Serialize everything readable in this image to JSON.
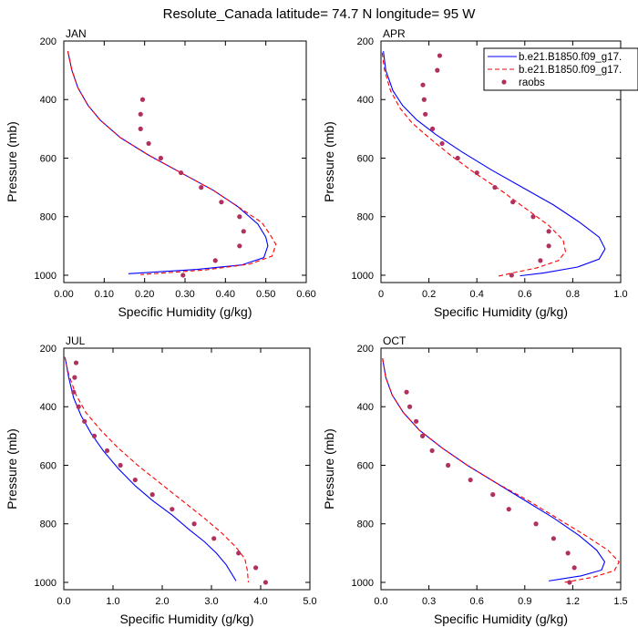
{
  "title": "Resolute_Canada  latitude= 74.7 N longitude= 95 W",
  "legend": {
    "entries": [
      {
        "label": "b.e21.B1850.f09_g17.",
        "style": "solid",
        "color": "#0000ff"
      },
      {
        "label": "b.e21.B1850.f09_g17.",
        "style": "dashed",
        "color": "#ff0000"
      },
      {
        "label": "raobs",
        "style": "dots",
        "color": "#b03060"
      }
    ]
  },
  "chart_data": [
    {
      "type": "line",
      "panel": "JAN",
      "xlabel": "Specific Humidity (g/kg)",
      "ylabel": "Pressure (mb)",
      "xlim": [
        0,
        0.6
      ],
      "ylim": [
        200,
        1025
      ],
      "y_reversed": true,
      "xticks": [
        "0.00",
        "0.10",
        "0.20",
        "0.30",
        "0.40",
        "0.50",
        "0.60"
      ],
      "xtick_values": [
        0,
        0.1,
        0.2,
        0.3,
        0.4,
        0.5,
        0.6
      ],
      "yticks": [
        200,
        400,
        600,
        800,
        1000
      ],
      "series": [
        {
          "style": "solid",
          "color": "#0000ff",
          "points": [
            [
              0.01,
              235
            ],
            [
              0.02,
              300
            ],
            [
              0.035,
              360
            ],
            [
              0.06,
              420
            ],
            [
              0.09,
              470
            ],
            [
              0.14,
              530
            ],
            [
              0.21,
              590
            ],
            [
              0.29,
              650
            ],
            [
              0.37,
              710
            ],
            [
              0.43,
              765
            ],
            [
              0.48,
              825
            ],
            [
              0.5,
              870
            ],
            [
              0.505,
              900
            ],
            [
              0.495,
              940
            ],
            [
              0.44,
              965
            ],
            [
              0.33,
              980
            ],
            [
              0.16,
              995
            ]
          ]
        },
        {
          "style": "dashed",
          "color": "#ff0000",
          "points": [
            [
              0.01,
              235
            ],
            [
              0.02,
              300
            ],
            [
              0.035,
              360
            ],
            [
              0.06,
              420
            ],
            [
              0.09,
              470
            ],
            [
              0.14,
              530
            ],
            [
              0.21,
              590
            ],
            [
              0.29,
              650
            ],
            [
              0.37,
              710
            ],
            [
              0.43,
              765
            ],
            [
              0.49,
              820
            ],
            [
              0.51,
              860
            ],
            [
              0.525,
              895
            ],
            [
              0.515,
              935
            ],
            [
              0.46,
              962
            ],
            [
              0.35,
              982
            ],
            [
              0.19,
              998
            ]
          ]
        },
        {
          "style": "dots",
          "color": "#b03060",
          "points": [
            [
              0.195,
              400
            ],
            [
              0.19,
              450
            ],
            [
              0.19,
              500
            ],
            [
              0.21,
              550
            ],
            [
              0.24,
              600
            ],
            [
              0.29,
              650
            ],
            [
              0.34,
              700
            ],
            [
              0.39,
              750
            ],
            [
              0.435,
              800
            ],
            [
              0.445,
              850
            ],
            [
              0.435,
              900
            ],
            [
              0.375,
              950
            ],
            [
              0.295,
              1000
            ]
          ]
        }
      ]
    },
    {
      "type": "line",
      "panel": "APR",
      "xlabel": "Specific Humidity (g/kg)",
      "ylabel": "Pressure (mb)",
      "xlim": [
        0,
        1.0
      ],
      "ylim": [
        200,
        1025
      ],
      "y_reversed": true,
      "xticks": [
        "0",
        "0.2",
        "0.4",
        "0.6",
        "0.8",
        "1.0"
      ],
      "xtick_values": [
        0,
        0.2,
        0.4,
        0.6,
        0.8,
        1.0
      ],
      "yticks": [
        200,
        400,
        600,
        800,
        1000
      ],
      "series": [
        {
          "style": "solid",
          "color": "#0000ff",
          "points": [
            [
              0.01,
              235
            ],
            [
              0.02,
              300
            ],
            [
              0.05,
              370
            ],
            [
              0.09,
              420
            ],
            [
              0.15,
              470
            ],
            [
              0.23,
              520
            ],
            [
              0.34,
              580
            ],
            [
              0.46,
              640
            ],
            [
              0.59,
              700
            ],
            [
              0.72,
              760
            ],
            [
              0.83,
              820
            ],
            [
              0.91,
              870
            ],
            [
              0.935,
              910
            ],
            [
              0.91,
              945
            ],
            [
              0.82,
              972
            ],
            [
              0.68,
              992
            ],
            [
              0.58,
              1002
            ]
          ]
        },
        {
          "style": "dashed",
          "color": "#ff0000",
          "points": [
            [
              0.005,
              240
            ],
            [
              0.015,
              300
            ],
            [
              0.04,
              370
            ],
            [
              0.08,
              430
            ],
            [
              0.13,
              480
            ],
            [
              0.2,
              530
            ],
            [
              0.29,
              590
            ],
            [
              0.39,
              650
            ],
            [
              0.5,
              710
            ],
            [
              0.6,
              770
            ],
            [
              0.7,
              830
            ],
            [
              0.76,
              880
            ],
            [
              0.77,
              920
            ],
            [
              0.74,
              950
            ],
            [
              0.65,
              975
            ],
            [
              0.55,
              992
            ],
            [
              0.48,
              1005
            ]
          ]
        },
        {
          "style": "dots",
          "color": "#b03060",
          "points": [
            [
              0.245,
              250
            ],
            [
              0.235,
              300
            ],
            [
              0.175,
              350
            ],
            [
              0.18,
              400
            ],
            [
              0.185,
              450
            ],
            [
              0.215,
              500
            ],
            [
              0.255,
              550
            ],
            [
              0.32,
              600
            ],
            [
              0.4,
              650
            ],
            [
              0.475,
              700
            ],
            [
              0.55,
              750
            ],
            [
              0.635,
              800
            ],
            [
              0.7,
              850
            ],
            [
              0.7,
              900
            ],
            [
              0.665,
              950
            ],
            [
              0.545,
              1000
            ]
          ]
        }
      ]
    },
    {
      "type": "line",
      "panel": "JUL",
      "xlabel": "Specific Humidity (g/kg)",
      "ylabel": "Pressure (mb)",
      "xlim": [
        0,
        5.0
      ],
      "ylim": [
        200,
        1025
      ],
      "y_reversed": true,
      "xticks": [
        "0.0",
        "1.0",
        "2.0",
        "3.0",
        "4.0",
        "5.0"
      ],
      "xtick_values": [
        0,
        1,
        2,
        3,
        4,
        5
      ],
      "yticks": [
        200,
        400,
        600,
        800,
        1000
      ],
      "series": [
        {
          "style": "solid",
          "color": "#0000ff",
          "points": [
            [
              0.03,
              235
            ],
            [
              0.1,
              300
            ],
            [
              0.2,
              370
            ],
            [
              0.35,
              430
            ],
            [
              0.55,
              490
            ],
            [
              0.8,
              550
            ],
            [
              1.1,
              610
            ],
            [
              1.45,
              670
            ],
            [
              1.8,
              720
            ],
            [
              2.2,
              770
            ],
            [
              2.55,
              820
            ],
            [
              2.85,
              860
            ],
            [
              3.1,
              900
            ],
            [
              3.3,
              940
            ],
            [
              3.5,
              995
            ]
          ]
        },
        {
          "style": "dashed",
          "color": "#ff0000",
          "points": [
            [
              0.02,
              230
            ],
            [
              0.1,
              290
            ],
            [
              0.25,
              360
            ],
            [
              0.45,
              420
            ],
            [
              0.75,
              480
            ],
            [
              1.1,
              540
            ],
            [
              1.5,
              600
            ],
            [
              1.95,
              660
            ],
            [
              2.4,
              720
            ],
            [
              2.85,
              780
            ],
            [
              3.2,
              830
            ],
            [
              3.5,
              880
            ],
            [
              3.68,
              920
            ],
            [
              3.73,
              960
            ],
            [
              3.75,
              1000
            ]
          ]
        },
        {
          "style": "dots",
          "color": "#b03060",
          "points": [
            [
              0.25,
              250
            ],
            [
              0.22,
              300
            ],
            [
              0.2,
              350
            ],
            [
              0.3,
              400
            ],
            [
              0.42,
              450
            ],
            [
              0.62,
              500
            ],
            [
              0.88,
              550
            ],
            [
              1.15,
              600
            ],
            [
              1.45,
              650
            ],
            [
              1.8,
              700
            ],
            [
              2.2,
              750
            ],
            [
              2.65,
              800
            ],
            [
              3.05,
              850
            ],
            [
              3.55,
              900
            ],
            [
              3.9,
              950
            ],
            [
              4.1,
              1000
            ]
          ]
        }
      ]
    },
    {
      "type": "line",
      "panel": "OCT",
      "xlabel": "Specific Humidity (g/kg)",
      "ylabel": "Pressure (mb)",
      "xlim": [
        0,
        1.5
      ],
      "ylim": [
        200,
        1025
      ],
      "y_reversed": true,
      "xticks": [
        "0.0",
        "0.3",
        "0.6",
        "0.9",
        "1.2",
        "1.5"
      ],
      "xtick_values": [
        0,
        0.3,
        0.6,
        0.9,
        1.2,
        1.5
      ],
      "yticks": [
        200,
        400,
        600,
        800,
        1000
      ],
      "series": [
        {
          "style": "solid",
          "color": "#0000ff",
          "points": [
            [
              0.01,
              235
            ],
            [
              0.03,
              300
            ],
            [
              0.07,
              360
            ],
            [
              0.14,
              420
            ],
            [
              0.24,
              480
            ],
            [
              0.38,
              540
            ],
            [
              0.54,
              600
            ],
            [
              0.72,
              660
            ],
            [
              0.9,
              720
            ],
            [
              1.08,
              780
            ],
            [
              1.24,
              840
            ],
            [
              1.35,
              890
            ],
            [
              1.4,
              930
            ],
            [
              1.38,
              958
            ],
            [
              1.25,
              978
            ],
            [
              1.05,
              995
            ]
          ]
        },
        {
          "style": "dashed",
          "color": "#ff0000",
          "points": [
            [
              0.01,
              235
            ],
            [
              0.03,
              300
            ],
            [
              0.07,
              360
            ],
            [
              0.14,
              420
            ],
            [
              0.24,
              480
            ],
            [
              0.38,
              540
            ],
            [
              0.54,
              600
            ],
            [
              0.72,
              660
            ],
            [
              0.92,
              720
            ],
            [
              1.1,
              780
            ],
            [
              1.28,
              840
            ],
            [
              1.42,
              890
            ],
            [
              1.49,
              930
            ],
            [
              1.46,
              960
            ],
            [
              1.33,
              982
            ],
            [
              1.15,
              1000
            ]
          ]
        },
        {
          "style": "dots",
          "color": "#b03060",
          "points": [
            [
              0.16,
              350
            ],
            [
              0.18,
              400
            ],
            [
              0.22,
              450
            ],
            [
              0.26,
              500
            ],
            [
              0.32,
              550
            ],
            [
              0.42,
              600
            ],
            [
              0.56,
              650
            ],
            [
              0.7,
              700
            ],
            [
              0.8,
              750
            ],
            [
              0.97,
              800
            ],
            [
              1.08,
              850
            ],
            [
              1.17,
              900
            ],
            [
              1.21,
              950
            ],
            [
              1.18,
              1000
            ]
          ]
        }
      ]
    }
  ]
}
